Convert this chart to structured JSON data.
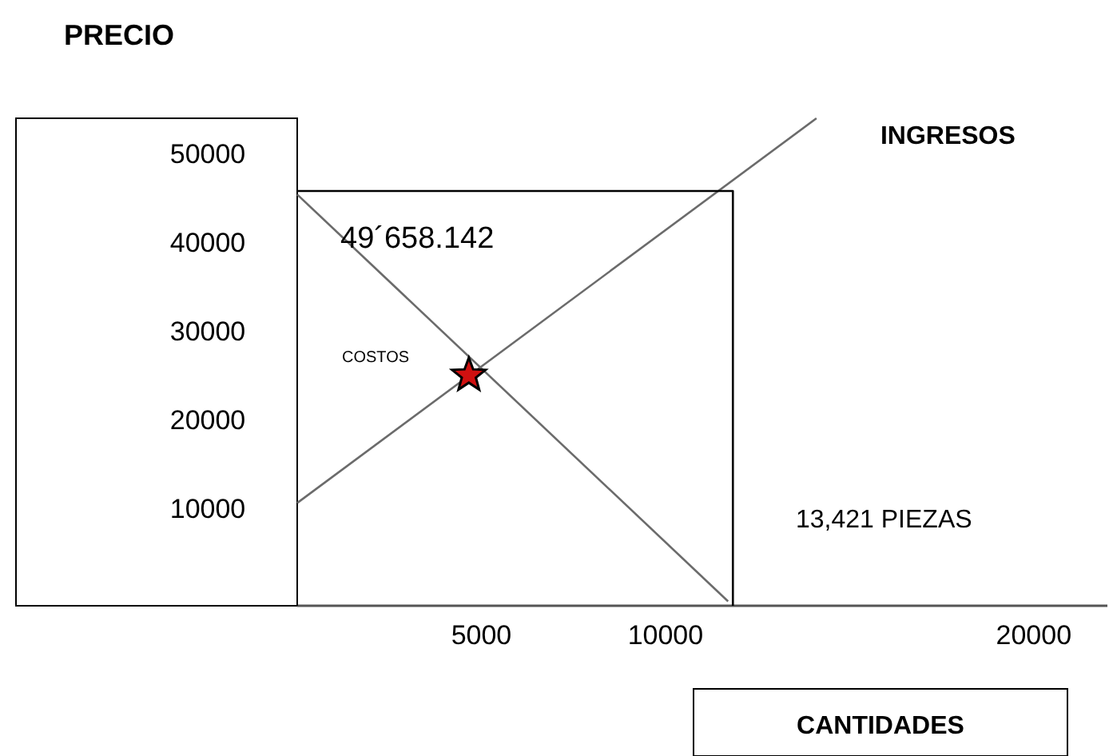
{
  "chart_data": {
    "type": "line",
    "xlabel": "CANTIDADES",
    "ylabel": "PRECIO",
    "xlim": [
      0,
      22000
    ],
    "ylim": [
      -1000,
      54000
    ],
    "xticks": [
      5000,
      10000,
      20000
    ],
    "yticks": [
      10000,
      20000,
      30000,
      40000,
      50000
    ],
    "grid": false,
    "series": [
      {
        "name": "INGRESOS",
        "color": "#6b6b6b",
        "x": [
          0,
          14100
        ],
        "values": [
          10600,
          54000
        ]
      },
      {
        "name": "COSTOS",
        "color": "#6b6b6b",
        "x": [
          0,
          11700
        ],
        "values": [
          45400,
          -500
        ]
      },
      {
        "color": "#000000",
        "x": [
          0,
          11830,
          11830
        ],
        "values": [
          45800,
          45800,
          -1000
        ]
      },
      {
        "type": "scatter",
        "color": "#d01010",
        "marker": "star",
        "x": [
          4660
        ],
        "values": [
          25000
        ]
      }
    ],
    "annotations": [
      "49´658.142",
      "13,421 PIEZAS"
    ]
  }
}
